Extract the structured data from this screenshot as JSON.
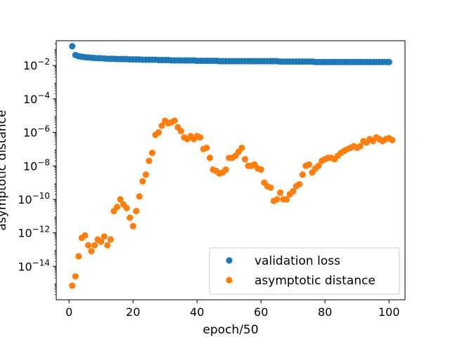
{
  "chart_data": {
    "type": "scatter",
    "title": "",
    "xlabel": "epoch/50",
    "ylabel": "asymptotic distance",
    "xlim": [
      -4,
      105
    ],
    "ylim": [
      1e-16,
      0.3
    ],
    "yscale": "log",
    "xticks": [
      0,
      20,
      40,
      60,
      80,
      100
    ],
    "xtick_labels": [
      "0",
      "20",
      "40",
      "60",
      "80",
      "100"
    ],
    "yticks": [
      1e-14,
      1e-12,
      1e-10,
      1e-08,
      1e-06,
      0.0001,
      0.01
    ],
    "ytick_labels": [
      {
        "base": "10",
        "exp": "−14"
      },
      {
        "base": "10",
        "exp": "−12"
      },
      {
        "base": "10",
        "exp": "−10"
      },
      {
        "base": "10",
        "exp": "−8"
      },
      {
        "base": "10",
        "exp": "−6"
      },
      {
        "base": "10",
        "exp": "−4"
      },
      {
        "base": "10",
        "exp": "−2"
      }
    ],
    "grid": false,
    "legend_position": "lower-right",
    "colors": {
      "validation loss": "#1f77b4",
      "asymptotic distance": "#ff7f0e"
    },
    "series": [
      {
        "name": "validation loss",
        "color": "#1f77b4",
        "x": [
          1,
          2,
          3,
          4,
          5,
          6,
          7,
          8,
          9,
          10,
          11,
          12,
          13,
          14,
          15,
          16,
          17,
          18,
          19,
          20,
          21,
          22,
          23,
          24,
          25,
          26,
          27,
          28,
          29,
          30,
          31,
          32,
          33,
          34,
          35,
          36,
          37,
          38,
          39,
          40,
          41,
          42,
          43,
          44,
          45,
          46,
          47,
          48,
          49,
          50,
          51,
          52,
          53,
          54,
          55,
          56,
          57,
          58,
          59,
          60,
          61,
          62,
          63,
          64,
          65,
          66,
          67,
          68,
          69,
          70,
          71,
          72,
          73,
          74,
          75,
          76,
          77,
          78,
          79,
          80,
          81,
          82,
          83,
          84,
          85,
          86,
          87,
          88,
          89,
          90,
          91,
          92,
          93,
          94,
          95,
          96,
          97,
          98,
          99,
          100
        ],
        "y": [
          0.14,
          0.042,
          0.036,
          0.033,
          0.031,
          0.03,
          0.029,
          0.028,
          0.027,
          0.027,
          0.026,
          0.025,
          0.025,
          0.025,
          0.024,
          0.024,
          0.024,
          0.024,
          0.023,
          0.023,
          0.023,
          0.023,
          0.022,
          0.022,
          0.022,
          0.022,
          0.022,
          0.021,
          0.021,
          0.021,
          0.021,
          0.02,
          0.02,
          0.02,
          0.02,
          0.02,
          0.02,
          0.02,
          0.02,
          0.019,
          0.019,
          0.019,
          0.019,
          0.019,
          0.019,
          0.019,
          0.018,
          0.018,
          0.018,
          0.018,
          0.018,
          0.018,
          0.018,
          0.018,
          0.018,
          0.018,
          0.018,
          0.018,
          0.018,
          0.018,
          0.018,
          0.018,
          0.018,
          0.018,
          0.018,
          0.017,
          0.017,
          0.017,
          0.017,
          0.017,
          0.017,
          0.017,
          0.017,
          0.017,
          0.017,
          0.017,
          0.016,
          0.016,
          0.016,
          0.016,
          0.016,
          0.016,
          0.016,
          0.016,
          0.016,
          0.016,
          0.016,
          0.016,
          0.016,
          0.016,
          0.016,
          0.016,
          0.016,
          0.016,
          0.016,
          0.016,
          0.016,
          0.016,
          0.016,
          0.016
        ]
      },
      {
        "name": "asymptotic distance",
        "color": "#ff7f0e",
        "x": [
          1,
          2,
          3,
          4,
          5,
          6,
          7,
          8,
          9,
          10,
          11,
          12,
          13,
          14,
          15,
          16,
          17,
          18,
          19,
          20,
          21,
          22,
          23,
          24,
          25,
          26,
          27,
          28,
          29,
          30,
          31,
          32,
          33,
          34,
          35,
          36,
          37,
          38,
          39,
          40,
          41,
          42,
          43,
          44,
          45,
          46,
          47,
          48,
          49,
          50,
          51,
          52,
          53,
          54,
          55,
          56,
          57,
          58,
          59,
          60,
          61,
          62,
          63,
          64,
          65,
          66,
          67,
          68,
          69,
          70,
          71,
          72,
          73,
          74,
          75,
          76,
          77,
          78,
          79,
          80,
          81,
          82,
          83,
          84,
          85,
          86,
          87,
          88,
          89,
          90,
          91,
          92,
          93,
          94,
          95,
          96,
          97,
          98,
          99,
          100,
          101
        ],
        "y": [
          7e-16,
          2.5e-15,
          4e-14,
          5e-13,
          7e-13,
          1.8e-13,
          8e-14,
          1.8e-13,
          4e-13,
          3e-13,
          6e-13,
          1.8e-13,
          4e-13,
          2e-11,
          3.5e-11,
          1e-10,
          5e-11,
          3e-11,
          8e-12,
          2.5e-12,
          2e-11,
          1.5e-10,
          1.2e-09,
          3e-09,
          2e-08,
          6e-08,
          7e-07,
          1e-06,
          2.5e-06,
          5e-06,
          3.5e-06,
          4e-06,
          5e-06,
          2e-06,
          1.2e-06,
          5e-07,
          4e-07,
          6e-07,
          4e-07,
          6e-07,
          5e-07,
          1e-07,
          1.2e-07,
          3e-08,
          6e-09,
          5e-09,
          3.5e-09,
          4e-09,
          6e-09,
          3e-08,
          3e-08,
          4e-08,
          7e-08,
          1.2e-07,
          2.5e-08,
          1e-08,
          1e-08,
          1.2e-08,
          7e-09,
          6e-09,
          1e-09,
          6e-10,
          5e-10,
          8e-11,
          1e-10,
          2.5e-10,
          1e-10,
          1e-10,
          2e-10,
          3e-10,
          6e-10,
          8e-10,
          3e-09,
          1e-08,
          1.2e-08,
          4e-09,
          7e-09,
          1e-08,
          2e-08,
          2.5e-08,
          3e-08,
          3e-08,
          2.5e-08,
          4e-08,
          6e-08,
          8e-08,
          1e-07,
          1.2e-07,
          1.5e-07,
          1.2e-07,
          1.5e-07,
          3e-07,
          2.5e-07,
          4e-07,
          3e-07,
          5e-07,
          4e-07,
          3e-07,
          4e-07,
          4.5e-07,
          3.5e-07
        ]
      }
    ]
  }
}
